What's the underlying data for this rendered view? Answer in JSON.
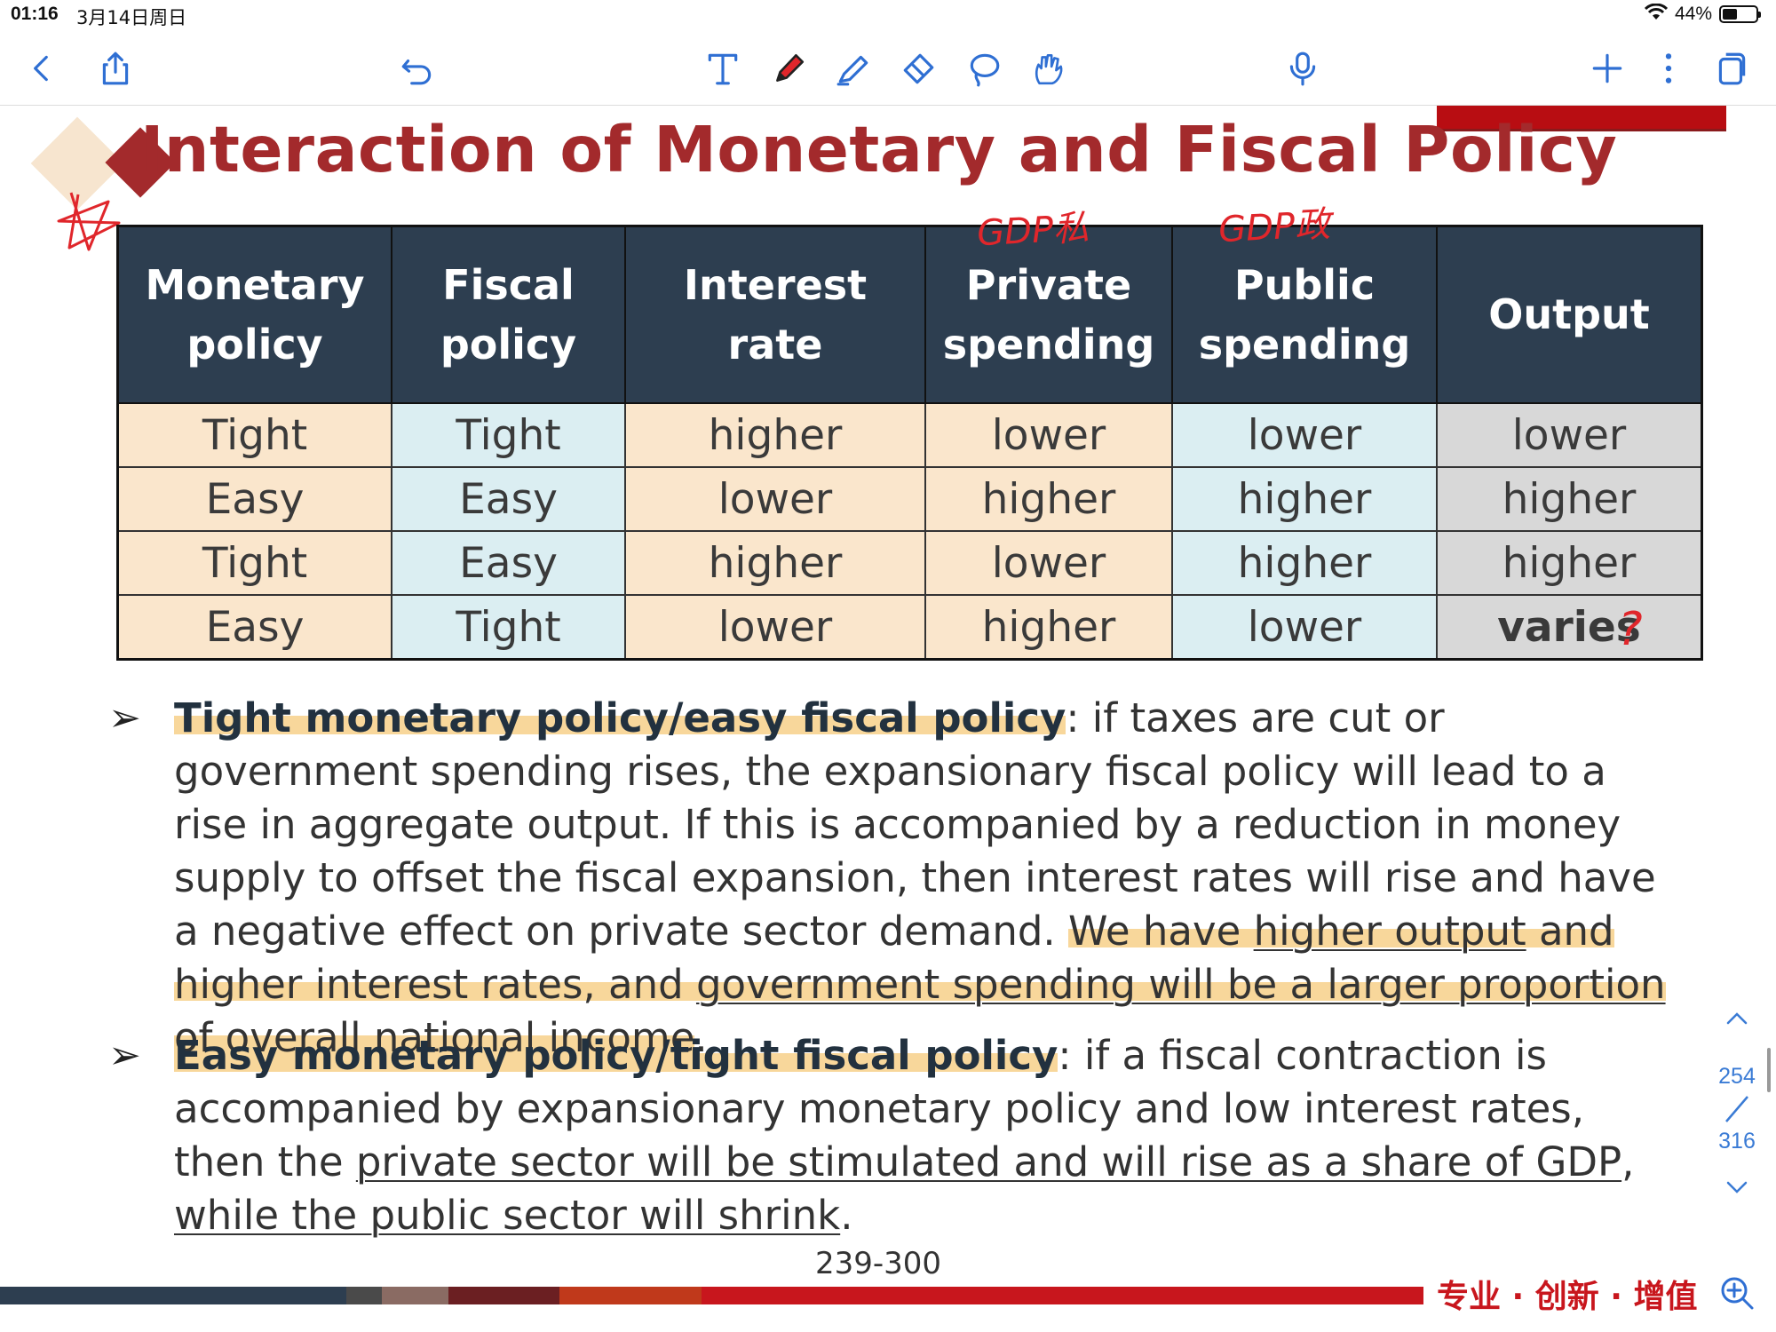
{
  "status_bar": {
    "time": "01:16",
    "date": "3月14日周日",
    "battery_percent": "44%",
    "battery_level": 0.44
  },
  "toolbar": {
    "icons": [
      "back-icon",
      "share-icon",
      "undo-icon",
      "text-tool-icon",
      "pen-tool-icon",
      "highlighter-tool-icon",
      "eraser-tool-icon",
      "lasso-tool-icon",
      "hand-draw-icon",
      "microphone-icon",
      "add-icon",
      "more-icon",
      "pages-icon"
    ],
    "accent_color": "#2f6fd3"
  },
  "slide": {
    "title": "Interaction of Monetary and Fiscal Policy",
    "title_color": "#a32a2c",
    "table": {
      "headers": [
        {
          "line1": "Monetary",
          "line2": "policy"
        },
        {
          "line1": "Fiscal",
          "line2": "policy"
        },
        {
          "line1": "Interest rate",
          "line2": ""
        },
        {
          "line1": "Private",
          "line2": "spending"
        },
        {
          "line1": "Public",
          "line2": "spending"
        },
        {
          "line1": "Output",
          "line2": ""
        }
      ],
      "rows": [
        [
          "Tight",
          "Tight",
          "higher",
          "lower",
          "lower",
          "lower"
        ],
        [
          "Easy",
          "Easy",
          "lower",
          "higher",
          "higher",
          "higher"
        ],
        [
          "Tight",
          "Easy",
          "higher",
          "lower",
          "higher",
          "higher"
        ],
        [
          "Easy",
          "Tight",
          "lower",
          "higher",
          "lower",
          "varies"
        ]
      ],
      "header_bg": "#2d3e50",
      "column_colors": [
        "#fae6cc",
        "#dbeef2",
        "#fae6cc",
        "#fae6cc",
        "#dbeef2",
        "#d8d8d8"
      ]
    },
    "bullets": [
      {
        "lead": "Tight monetary policy/easy fiscal policy",
        "text_plain": ": if taxes are cut or government spending rises, the expansionary fiscal policy will lead to a rise in aggregate output. If this is accompanied by a reduction in money supply to offset the fiscal expansion, then interest rates will rise and have a negative effect on private sector demand. ",
        "hl_a": "We have ",
        "hl_ul": "higher output",
        "hl_b": " and higher interest rates, and ",
        "hl_ul2": "government spending will be a larger proportion of overall national income",
        "end": "."
      },
      {
        "lead": "Easy monetary policy/tight fiscal policy",
        "text_a": ": if a fiscal contraction is accompanied by expansionary monetary policy and low interest rates, then the ",
        "ul_a": "private sector will be stimulated and will rise as a share of GDP",
        "mid": ", ",
        "ul_b": "while the public sector will shrink",
        "end": "."
      }
    ],
    "page_range": "239-300",
    "slogan": "专业 · 创新 · 增值"
  },
  "pager": {
    "current": "254",
    "total": "316"
  },
  "annotations": {
    "private_note": "GDP私",
    "public_note": "GDP政",
    "question_mark": "?",
    "ink_color": "#e0262b"
  }
}
